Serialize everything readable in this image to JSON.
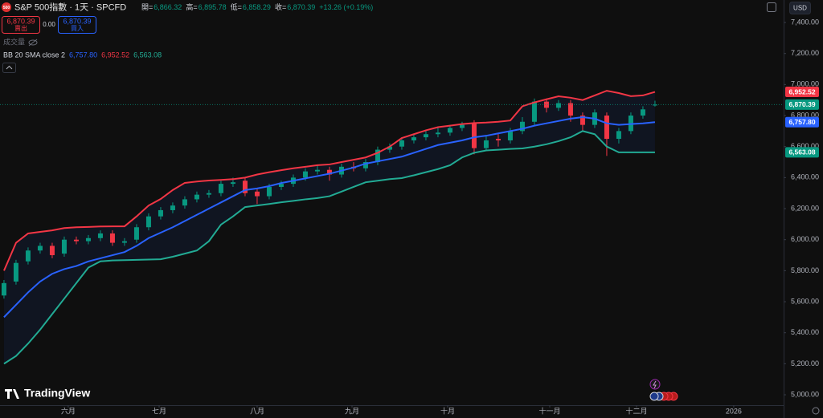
{
  "header": {
    "badge": "500",
    "title": "S&P 500指數 · 1天 · SPCFD",
    "ohlc": [
      {
        "label": "開=",
        "value": "6,866.32"
      },
      {
        "label": "高=",
        "value": "6,895.78"
      },
      {
        "label": "低=",
        "value": "6,858.29"
      },
      {
        "label": "收=",
        "value": "6,870.39"
      }
    ],
    "change": "+13.26 (+0.19%)",
    "sell_price": "6,870.39",
    "sell": "賣出",
    "spread": "0.00",
    "buy_price": "6,870.39",
    "buy": "買入",
    "volume": "成交量",
    "indicator": {
      "name": "BB 20 SMA close 2",
      "values": [
        "6,757.80",
        "6,952.52",
        "6,563.08"
      ]
    },
    "currency": "USD",
    "logo": "TradingView"
  },
  "chart_data": {
    "type": "candlestick",
    "up_color": "#089981",
    "down_color": "#f23645",
    "open": [
      5640,
      5730,
      5860,
      5930,
      5960,
      5910,
      6000,
      5990,
      6010,
      6040,
      5980,
      6000,
      6080,
      6150,
      6190,
      6220,
      6260,
      6290,
      6300,
      6360,
      6380,
      6310,
      6280,
      6340,
      6360,
      6400,
      6440,
      6450,
      6420,
      6470,
      6460,
      6500,
      6580,
      6600,
      6640,
      6660,
      6680,
      6690,
      6720,
      6750,
      6590,
      6650,
      6640,
      6700,
      6760,
      6890,
      6850,
      6880,
      6800,
      6740,
      6800,
      6650,
      6700,
      6800,
      6866.32
    ],
    "high": [
      5740,
      5870,
      5950,
      5980,
      5980,
      6020,
      6020,
      6030,
      6060,
      6060,
      6010,
      6100,
      6170,
      6210,
      6240,
      6280,
      6310,
      6320,
      6380,
      6400,
      6400,
      6330,
      6360,
      6380,
      6420,
      6460,
      6480,
      6470,
      6490,
      6500,
      6520,
      6600,
      6620,
      6660,
      6680,
      6700,
      6720,
      6740,
      6760,
      6770,
      6670,
      6680,
      6720,
      6790,
      6910,
      6910,
      6900,
      6900,
      6820,
      6840,
      6820,
      6720,
      6820,
      6860,
      6895.78
    ],
    "low": [
      5620,
      5710,
      5840,
      5910,
      5880,
      5890,
      5970,
      5970,
      5990,
      5960,
      5960,
      5980,
      6060,
      6130,
      6170,
      6200,
      6240,
      6270,
      6280,
      6340,
      6280,
      6230,
      6260,
      6320,
      6340,
      6380,
      6420,
      6380,
      6400,
      6440,
      6440,
      6480,
      6560,
      6580,
      6620,
      6640,
      6660,
      6670,
      6700,
      6550,
      6570,
      6600,
      6620,
      6680,
      6740,
      6820,
      6830,
      6760,
      6700,
      6720,
      6540,
      6620,
      6680,
      6780,
      6858.29
    ],
    "close": [
      5720,
      5850,
      5930,
      5960,
      5900,
      6000,
      5990,
      6010,
      6040,
      5980,
      5990,
      6080,
      6150,
      6190,
      6220,
      6260,
      6290,
      6300,
      6360,
      6370,
      6300,
      6280,
      6340,
      6360,
      6400,
      6440,
      6450,
      6420,
      6470,
      6460,
      6500,
      6580,
      6600,
      6640,
      6660,
      6680,
      6690,
      6720,
      6740,
      6590,
      6640,
      6640,
      6700,
      6760,
      6890,
      6850,
      6880,
      6800,
      6740,
      6820,
      6650,
      6700,
      6800,
      6840,
      6870.39
    ],
    "series": [
      {
        "color": "#f23645",
        "values": [
          5800,
          5980,
          6040,
          6050,
          6060,
          6075,
          6080,
          6082,
          6085,
          6086,
          6086,
          6150,
          6220,
          6262,
          6320,
          6366,
          6375,
          6381,
          6385,
          6390,
          6400,
          6420,
          6435,
          6448,
          6460,
          6470,
          6480,
          6485,
          6500,
          6515,
          6530,
          6560,
          6600,
          6655,
          6680,
          6705,
          6725,
          6735,
          6745,
          6752,
          6755,
          6760,
          6768,
          6860,
          6885,
          6905,
          6924,
          6915,
          6900,
          6930,
          6960,
          6945,
          6925,
          6930,
          6952.52
        ]
      },
      {
        "color": "#2962ff",
        "values": [
          5500,
          5580,
          5660,
          5730,
          5780,
          5810,
          5830,
          5860,
          5880,
          5900,
          5920,
          5960,
          6010,
          6045,
          6080,
          6120,
          6160,
          6200,
          6240,
          6280,
          6320,
          6330,
          6345,
          6365,
          6380,
          6395,
          6410,
          6425,
          6445,
          6465,
          6490,
          6505,
          6520,
          6535,
          6560,
          6585,
          6610,
          6625,
          6640,
          6660,
          6670,
          6685,
          6700,
          6715,
          6735,
          6750,
          6765,
          6780,
          6790,
          6780,
          6750,
          6740,
          6745,
          6750,
          6757.8
        ]
      },
      {
        "color": "#22ab94",
        "values": [
          5200,
          5250,
          5330,
          5420,
          5520,
          5620,
          5720,
          5820,
          5860,
          5866,
          5868,
          5870,
          5872,
          5874,
          5890,
          5910,
          5930,
          5990,
          6097,
          6150,
          6210,
          6220,
          6230,
          6241,
          6250,
          6260,
          6268,
          6280,
          6310,
          6340,
          6370,
          6380,
          6390,
          6397,
          6415,
          6435,
          6455,
          6480,
          6530,
          6560,
          6575,
          6580,
          6585,
          6588,
          6600,
          6615,
          6635,
          6660,
          6700,
          6680,
          6600,
          6563,
          6563,
          6563,
          6563.08
        ]
      }
    ],
    "band_fill": "#2962ff",
    "xlim": [
      -0.33,
      64.67
    ],
    "xticks": [
      {
        "value": 5.33,
        "label": "六月"
      },
      {
        "value": 12.87,
        "label": "七月"
      },
      {
        "value": 21.0,
        "label": "八月"
      },
      {
        "value": 28.87,
        "label": "九月"
      },
      {
        "value": 36.8,
        "label": "十月"
      },
      {
        "value": 45.27,
        "label": "十一月"
      },
      {
        "value": 52.47,
        "label": "十二月"
      },
      {
        "value": 60.53,
        "label": "2026"
      }
    ],
    "ylim": [
      4933,
      7545
    ],
    "yticks": [
      {
        "value": 5000,
        "label": "5,000.00"
      },
      {
        "value": 5200,
        "label": "5,200.00"
      },
      {
        "value": 5400,
        "label": "5,400.00"
      },
      {
        "value": 5600,
        "label": "5,600.00"
      },
      {
        "value": 5800,
        "label": "5,800.00"
      },
      {
        "value": 6000,
        "label": "6,000.00"
      },
      {
        "value": 6200,
        "label": "6,200.00"
      },
      {
        "value": 6400,
        "label": "6,400.00"
      },
      {
        "value": 6600,
        "label": "6,600.00"
      },
      {
        "value": 6800,
        "label": "6,800.00"
      },
      {
        "value": 7000,
        "label": "7,000.00"
      },
      {
        "value": 7200,
        "label": "7,200.00"
      },
      {
        "value": 7400,
        "label": "7,400.00"
      }
    ],
    "grid": false,
    "price_labels": [
      {
        "value": 6952.52,
        "label": "6,952.52",
        "color": "#f23645"
      },
      {
        "value": 6870.39,
        "label": "6,870.39",
        "color": "#089981"
      },
      {
        "value": 6757.8,
        "label": "6,757.80",
        "color": "#2962ff"
      },
      {
        "value": 6563.08,
        "label": "6,563.08",
        "color": "#089981"
      }
    ]
  }
}
